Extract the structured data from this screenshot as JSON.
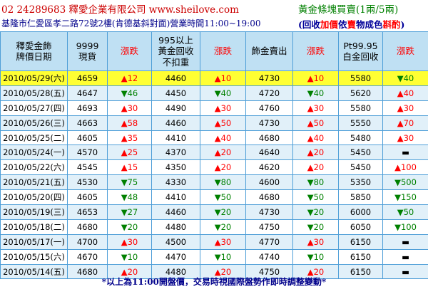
{
  "header": {
    "contact": "02 24289683   釋愛企業有限公司   www.sheilove.com",
    "gold_title": "黃金條塊買賣(1兩/5兩)",
    "address": "基隆市仁愛區孝二路72號2樓(肯德基斜對面)營業時間11:00~19:00",
    "recycle_parts": [
      "(回收",
      "加價",
      "依",
      "賣",
      "物成色",
      "斟酌",
      ")"
    ]
  },
  "columns": [
    {
      "key": "date",
      "label": "釋愛金飾\n牌價日期"
    },
    {
      "key": "cash",
      "label": "9999\n現貨"
    },
    {
      "key": "chg1",
      "label": "漲跌"
    },
    {
      "key": "recycle",
      "label": "995以上\n黃金回收\n不扣重"
    },
    {
      "key": "chg2",
      "label": "漲跌"
    },
    {
      "key": "jewelry",
      "label": "飾金賣出"
    },
    {
      "key": "chg3",
      "label": "漲跌"
    },
    {
      "key": "pt",
      "label": "Pt99.95\n白金回收"
    },
    {
      "key": "chg4",
      "label": "漲跌"
    }
  ],
  "rows": [
    {
      "date": "2010/05/29(六)",
      "cash": "4659",
      "chg1": "▲12",
      "recycle": "4460",
      "chg2": "▲10",
      "jewelry": "4730",
      "chg3": "▲10",
      "pt": "5580",
      "chg4": "▼40"
    },
    {
      "date": "2010/05/28(五)",
      "cash": "4647",
      "chg1": "▼46",
      "recycle": "4450",
      "chg2": "▼40",
      "jewelry": "4720",
      "chg3": "▼40",
      "pt": "5620",
      "chg4": "▲40"
    },
    {
      "date": "2010/05/27(四)",
      "cash": "4693",
      "chg1": "▲30",
      "recycle": "4490",
      "chg2": "▲30",
      "jewelry": "4760",
      "chg3": "▲30",
      "pt": "5580",
      "chg4": "▲30"
    },
    {
      "date": "2010/05/26(三)",
      "cash": "4663",
      "chg1": "▲58",
      "recycle": "4460",
      "chg2": "▲50",
      "jewelry": "4730",
      "chg3": "▲50",
      "pt": "5550",
      "chg4": "▲70"
    },
    {
      "date": "2010/05/25(二)",
      "cash": "4605",
      "chg1": "▲35",
      "recycle": "4410",
      "chg2": "▲40",
      "jewelry": "4680",
      "chg3": "▲40",
      "pt": "5480",
      "chg4": "▲30"
    },
    {
      "date": "2010/05/24(一)",
      "cash": "4570",
      "chg1": "▲25",
      "recycle": "4370",
      "chg2": "▲20",
      "jewelry": "4640",
      "chg3": "▲20",
      "pt": "5450",
      "chg4": "▬"
    },
    {
      "date": "2010/05/22(六)",
      "cash": "4545",
      "chg1": "▲15",
      "recycle": "4350",
      "chg2": "▲20",
      "jewelry": "4620",
      "chg3": "▲20",
      "pt": "5450",
      "chg4": "▲100"
    },
    {
      "date": "2010/05/21(五)",
      "cash": "4530",
      "chg1": "▼75",
      "recycle": "4330",
      "chg2": "▼80",
      "jewelry": "4600",
      "chg3": "▼80",
      "pt": "5350",
      "chg4": "▼500"
    },
    {
      "date": "2010/05/20(四)",
      "cash": "4605",
      "chg1": "▼48",
      "recycle": "4410",
      "chg2": "▼50",
      "jewelry": "4680",
      "chg3": "▼50",
      "pt": "5850",
      "chg4": "▼150"
    },
    {
      "date": "2010/05/19(三)",
      "cash": "4653",
      "chg1": "▼27",
      "recycle": "4460",
      "chg2": "▼20",
      "jewelry": "4730",
      "chg3": "▼20",
      "pt": "6000",
      "chg4": "▼50"
    },
    {
      "date": "2010/05/18(二)",
      "cash": "4680",
      "chg1": "▼20",
      "recycle": "4480",
      "chg2": "▼20",
      "jewelry": "4750",
      "chg3": "▼20",
      "pt": "6050",
      "chg4": "▼100"
    },
    {
      "date": "2010/05/17(一)",
      "cash": "4700",
      "chg1": "▲30",
      "recycle": "4500",
      "chg2": "▲30",
      "jewelry": "4770",
      "chg3": "▲30",
      "pt": "6150",
      "chg4": "▬"
    },
    {
      "date": "2010/05/15(六)",
      "cash": "4670",
      "chg1": "▼10",
      "recycle": "4470",
      "chg2": "▼10",
      "jewelry": "4740",
      "chg3": "▼10",
      "pt": "6150",
      "chg4": "▬"
    },
    {
      "date": "2010/05/14(五)",
      "cash": "4680",
      "chg1": "▲20",
      "recycle": "4480",
      "chg2": "▲20",
      "jewelry": "4750",
      "chg3": "▲20",
      "pt": "6150",
      "chg4": "▬"
    }
  ],
  "footer": "*以上為11:00開盤價，交易時視國際盤勢作即時調整變動*",
  "colors": {
    "up": "#ff0000",
    "down": "#008000",
    "header_bg": "#bfe0f3",
    "highlight": "#ffff33",
    "stripe": "#e1f0f9",
    "border": "#4f9fd8"
  }
}
